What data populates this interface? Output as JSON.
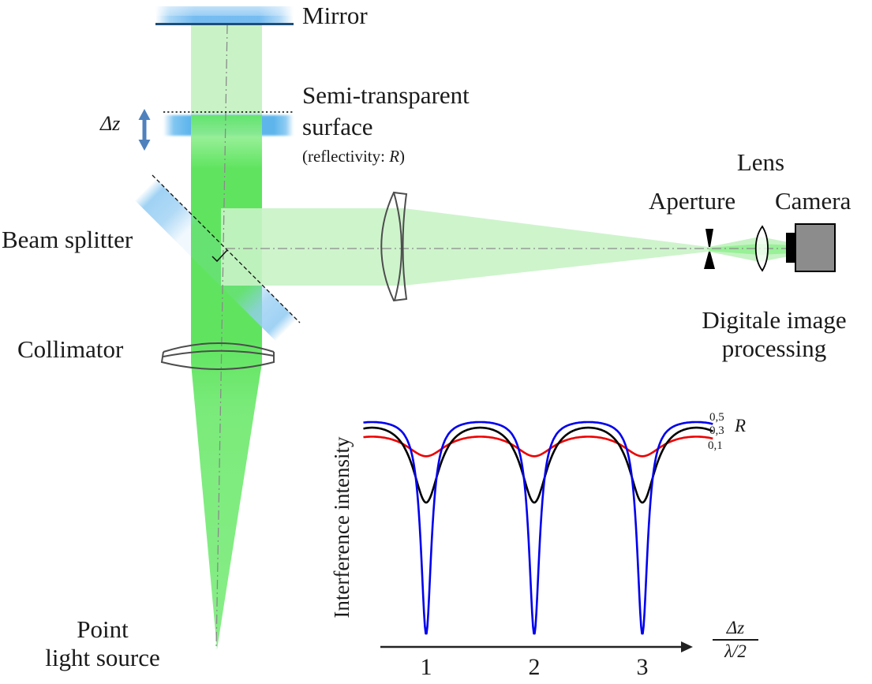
{
  "diagram": {
    "labels": {
      "mirror": "Mirror",
      "semi_transparent_line1": "Semi-transparent",
      "semi_transparent_line2": "surface",
      "reflectivity_prefix": "(reflectivity: ",
      "reflectivity_symbol": "R",
      "reflectivity_suffix": ")",
      "beam_splitter": "Beam splitter",
      "collimator": "Collimator",
      "point_source_line1": "Point",
      "point_source_line2": "light source",
      "lens": "Lens",
      "aperture": "Aperture",
      "camera": "Camera",
      "processing_line1": "Digitale image",
      "processing_line2": "processing",
      "delta_z": "Δz"
    }
  },
  "colors": {
    "beam_light": "#c9f3c6",
    "beam_bright": "#52e252",
    "beam_cone": "#7dec7d",
    "surface_blue": "#50afeb",
    "mirror_blue": "#6eb9f0",
    "mirror_edge_navy": "#1f4e79",
    "splitter_blue": "#96cdf3",
    "arrow_blue": "#4f81bd",
    "camera_gray": "#8c8c8c",
    "outline_gray": "#4d4d4d",
    "centerline_gray": "#8a8a8a"
  },
  "chart_data": {
    "type": "line",
    "title": "",
    "ylabel": "Interference intensity",
    "xlabel_numerator": "Δz",
    "xlabel_denominator": "λ/2",
    "x_axis_meaning": "surface displacement Δz in units of half wavelength λ/2",
    "x_tick_labels": [
      "1",
      "2",
      "3"
    ],
    "x_ticks": [
      1,
      2,
      3
    ],
    "minima_at_x": [
      1,
      2,
      3
    ],
    "x_range": [
      0.42,
      3.66
    ],
    "y_range": [
      0,
      1
    ],
    "grid": false,
    "legend_title": "R",
    "legend_position": "right of curve ends",
    "legend_order_top_to_bottom": [
      "0,5",
      "0,3",
      "0,1"
    ],
    "curve_formula": "I(u) = min + (peak - min) * (1+F) * sin^2(pi*u) / (1 + F*sin^2(pi*u)), u = Δz/(λ/2), F = sharpness",
    "series": [
      {
        "name": "R = 0,1",
        "label": "0,1",
        "color": "#ee0000",
        "model": {
          "peak": 0.935,
          "min": 0.848,
          "sharpness": 1.6
        },
        "sample_x": [
          0.5,
          1,
          1.5,
          2,
          2.5,
          3,
          3.5
        ],
        "sample_y": [
          0.94,
          0.85,
          0.94,
          0.85,
          0.94,
          0.85,
          0.94
        ]
      },
      {
        "name": "R = 0,3",
        "label": "0,3",
        "color": "#000000",
        "model": {
          "peak": 0.975,
          "min": 0.642,
          "sharpness": 4.2
        },
        "sample_x": [
          0.5,
          1,
          1.5,
          2,
          2.5,
          3,
          3.5
        ],
        "sample_y": [
          0.98,
          0.64,
          0.98,
          0.64,
          0.98,
          0.64,
          0.98
        ]
      },
      {
        "name": "R = 0,5",
        "label": "0,5",
        "color": "#0000ee",
        "model": {
          "peak": 1.0,
          "min": 0.055,
          "sharpness": 28
        },
        "sample_x": [
          0.5,
          1,
          1.5,
          2,
          2.5,
          3,
          3.5
        ],
        "sample_y": [
          1.0,
          0.06,
          1.0,
          0.06,
          1.0,
          0.06,
          1.0
        ]
      }
    ]
  }
}
